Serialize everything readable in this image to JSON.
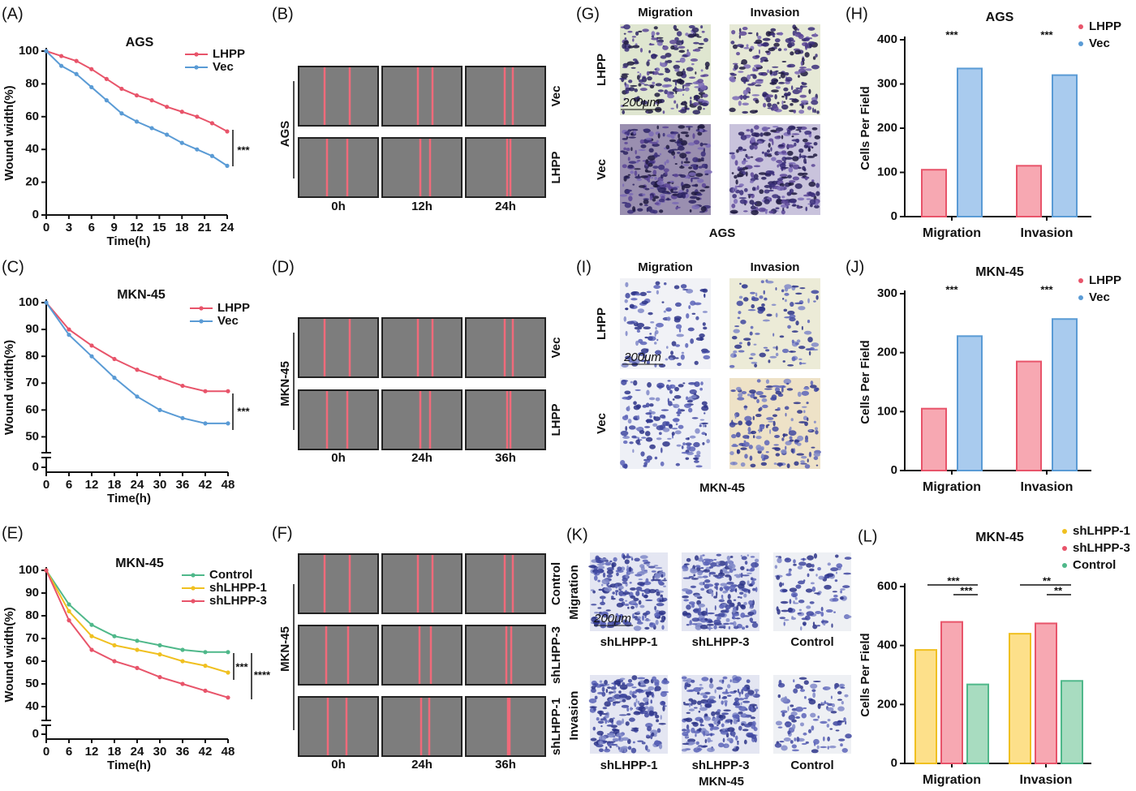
{
  "chart_data": [
    {
      "type": "line",
      "panel": "(A)",
      "title": "AGS",
      "x": [
        0,
        2,
        4,
        6,
        8,
        10,
        12,
        14,
        16,
        18,
        20,
        22,
        24
      ],
      "series": [
        {
          "name": "LHPP",
          "color": "#e8546a",
          "values": [
            100,
            97,
            94,
            89,
            83,
            77,
            73,
            70,
            66,
            63,
            60,
            56,
            51
          ]
        },
        {
          "name": "Vec",
          "color": "#5a9bd5",
          "values": [
            100,
            91,
            86,
            78,
            70,
            62,
            57,
            53,
            49,
            44,
            40,
            36,
            30
          ]
        }
      ],
      "xlim": [
        0,
        24
      ],
      "xticks": [
        0,
        3,
        6,
        9,
        12,
        15,
        18,
        21,
        24
      ],
      "ylim": [
        0,
        100
      ],
      "yticks": [
        0,
        20,
        40,
        60,
        80,
        100
      ],
      "xlabel": "Time(h)",
      "ylabel": "Wound width(%)",
      "annotations": [
        "***"
      ]
    },
    {
      "type": "line",
      "panel": "(C)",
      "title": "MKN-45",
      "x": [
        0,
        6,
        12,
        18,
        24,
        30,
        36,
        42,
        48
      ],
      "series": [
        {
          "name": "LHPP",
          "color": "#e8546a",
          "values": [
            100,
            90,
            84,
            79,
            75,
            72,
            69,
            67,
            67
          ]
        },
        {
          "name": "Vec",
          "color": "#5a9bd5",
          "values": [
            100,
            88,
            80,
            72,
            65,
            60,
            57,
            55,
            55
          ]
        }
      ],
      "xlim": [
        0,
        48
      ],
      "xticks": [
        0,
        6,
        12,
        18,
        24,
        30,
        36,
        42,
        48
      ],
      "ylim": [
        45,
        100
      ],
      "yticks": [
        50,
        60,
        70,
        80,
        90,
        100
      ],
      "lower_yticks": [
        0
      ],
      "xlabel": "Time(h)",
      "ylabel": "Wound width(%)",
      "annotations": [
        "***"
      ]
    },
    {
      "type": "line",
      "panel": "(E)",
      "title": "MKN-45",
      "x": [
        0,
        6,
        12,
        18,
        24,
        30,
        36,
        42,
        48
      ],
      "series": [
        {
          "name": "Control",
          "color": "#4fb88a",
          "values": [
            100,
            85,
            76,
            71,
            69,
            67,
            65,
            64,
            64
          ]
        },
        {
          "name": "shLHPP-1",
          "color": "#f0c020",
          "values": [
            100,
            82,
            71,
            67,
            65,
            63,
            60,
            58,
            55
          ]
        },
        {
          "name": "shLHPP-3",
          "color": "#e8546a",
          "values": [
            100,
            78,
            65,
            60,
            57,
            53,
            50,
            47,
            44
          ]
        }
      ],
      "xlim": [
        0,
        48
      ],
      "xticks": [
        0,
        6,
        12,
        18,
        24,
        30,
        36,
        42,
        48
      ],
      "ylim": [
        35,
        100
      ],
      "yticks": [
        40,
        50,
        60,
        70,
        80,
        90,
        100
      ],
      "lower_yticks": [
        0
      ],
      "xlabel": "Time(h)",
      "ylabel": "Wound width(%)",
      "annotations": [
        "***",
        "****"
      ]
    },
    {
      "type": "bar",
      "panel": "(H)",
      "title": "AGS",
      "categories": [
        "Migration",
        "Invasion"
      ],
      "series": [
        {
          "name": "LHPP",
          "color": "#e8546a",
          "fill": "#f7a8b2",
          "values": [
            106,
            115
          ]
        },
        {
          "name": "Vec",
          "color": "#5a9bd5",
          "fill": "#a9cbee",
          "values": [
            335,
            320
          ]
        }
      ],
      "ylim": [
        0,
        400
      ],
      "yticks": [
        0,
        100,
        200,
        300,
        400
      ],
      "ylabel": "Cells Per Field",
      "annotations": [
        "***",
        "***"
      ]
    },
    {
      "type": "bar",
      "panel": "(J)",
      "title": "MKN-45",
      "categories": [
        "Migration",
        "Invasion"
      ],
      "series": [
        {
          "name": "LHPP",
          "color": "#e8546a",
          "fill": "#f7a8b2",
          "values": [
            105,
            185
          ]
        },
        {
          "name": "Vec",
          "color": "#5a9bd5",
          "fill": "#a9cbee",
          "values": [
            228,
            257
          ]
        }
      ],
      "ylim": [
        0,
        300
      ],
      "yticks": [
        0,
        100,
        200,
        300
      ],
      "ylabel": "Cells Per Field",
      "annotations": [
        "***",
        "***"
      ]
    },
    {
      "type": "bar",
      "panel": "(L)",
      "title": "MKN-45",
      "categories": [
        "Migration",
        "Invasion"
      ],
      "series": [
        {
          "name": "shLHPP-1",
          "color": "#f0c020",
          "fill": "#fde08a",
          "values": [
            385,
            440
          ]
        },
        {
          "name": "shLHPP-3",
          "color": "#e8546a",
          "fill": "#f7a8b2",
          "values": [
            480,
            475
          ]
        },
        {
          "name": "Control",
          "color": "#4fb88a",
          "fill": "#a8dcc0",
          "values": [
            268,
            280
          ]
        }
      ],
      "ylim": [
        0,
        600
      ],
      "yticks": [
        0,
        200,
        400,
        600
      ],
      "ylabel": "Cells Per Field",
      "annotations": [
        "***",
        "***",
        "**",
        "**"
      ]
    }
  ],
  "image_panels": [
    {
      "panel": "(B)",
      "side_label": "AGS",
      "rows": [
        "Vec",
        "LHPP"
      ],
      "columns": [
        "0h",
        "12h",
        "24h"
      ]
    },
    {
      "panel": "(D)",
      "side_label": "MKN-45",
      "rows": [
        "Vec",
        "LHPP"
      ],
      "columns": [
        "0h",
        "24h",
        "36h"
      ]
    },
    {
      "panel": "(F)",
      "side_label": "MKN-45",
      "rows": [
        "Control",
        "shLHPP-3",
        "shLHPP-1"
      ],
      "columns": [
        "0h",
        "24h",
        "36h"
      ]
    }
  ],
  "micrograph_panels": [
    {
      "panel": "(G)",
      "columns": [
        "Migration",
        "Invasion"
      ],
      "rows": [
        "LHPP",
        "Vec"
      ],
      "caption": "AGS",
      "scale_bar": "200μm"
    },
    {
      "panel": "(I)",
      "columns": [
        "Migration",
        "Invasion"
      ],
      "rows": [
        "LHPP",
        "Vec"
      ],
      "caption": "MKN-45",
      "scale_bar": "200μm"
    },
    {
      "panel": "(K)",
      "rows": [
        "Migration",
        "Invasion"
      ],
      "columns": [
        "shLHPP-1",
        "shLHPP-3",
        "Control"
      ],
      "caption": "MKN-45",
      "scale_bar": "200μm"
    }
  ]
}
